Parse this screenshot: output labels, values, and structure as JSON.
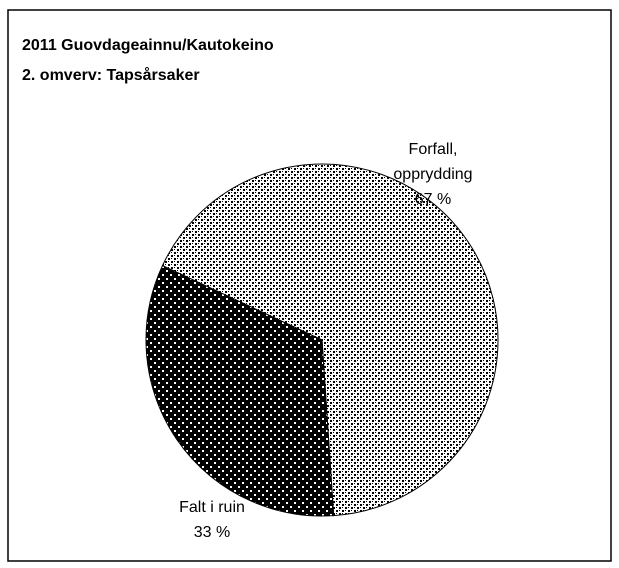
{
  "chart_data": {
    "type": "pie",
    "title": "2011 Guovdageainnu/Kautokeino",
    "subtitle": "2. omverv: Tapsårsaker",
    "categories": [
      "Forfall, opprydding",
      "Falt i ruin"
    ],
    "values": [
      67,
      33
    ],
    "value_labels": [
      "67 %",
      "33 %"
    ]
  }
}
